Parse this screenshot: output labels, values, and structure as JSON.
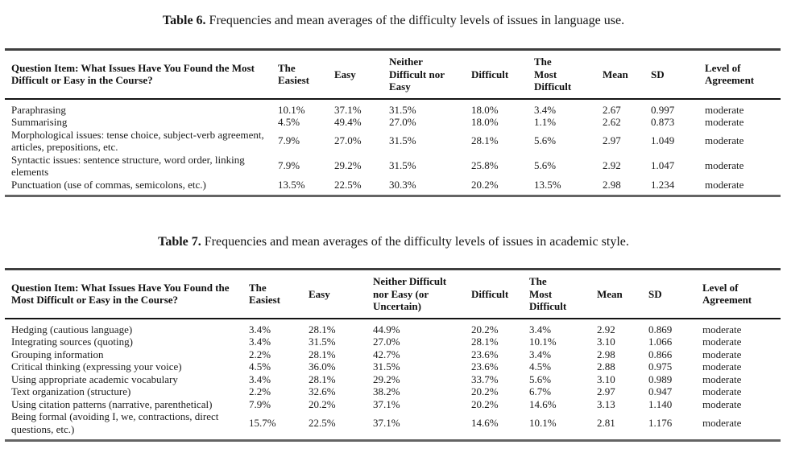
{
  "page": {
    "background": "#ffffff",
    "text_color": "#1b1b1b",
    "border_top_color": "#3f3f3f",
    "border_bottom_color": "#646464",
    "header_rule_color": "#141414"
  },
  "tables": [
    {
      "id": "table-6",
      "caption_label": "Table 6.",
      "caption_text": " Frequencies and mean averages of the difficulty levels of issues in language use.",
      "columns": [
        "Question Item: What Issues Have You Found the Most Difficult or Easy in the Course?",
        "The\nEasiest",
        "Easy",
        "Neither\nDifficult nor\nEasy",
        "Difficult",
        "The\nMost\nDifficult",
        "Mean",
        "SD",
        "Level of\nAgreement"
      ],
      "rows": [
        [
          "Paraphrasing",
          "10.1%",
          "37.1%",
          "31.5%",
          "18.0%",
          "3.4%",
          "2.67",
          "0.997",
          "moderate"
        ],
        [
          "Summarising",
          "4.5%",
          "49.4%",
          "27.0%",
          "18.0%",
          "1.1%",
          "2.62",
          "0.873",
          "moderate"
        ],
        [
          "Morphological issues: tense choice, subject-verb agreement, articles, prepositions, etc.",
          "7.9%",
          "27.0%",
          "31.5%",
          "28.1%",
          "5.6%",
          "2.97",
          "1.049",
          "moderate"
        ],
        [
          "Syntactic issues: sentence structure, word order, linking elements",
          "7.9%",
          "29.2%",
          "31.5%",
          "25.8%",
          "5.6%",
          "2.92",
          "1.047",
          "moderate"
        ],
        [
          "Punctuation (use of commas, semicolons, etc.)",
          "13.5%",
          "22.5%",
          "30.3%",
          "20.2%",
          "13.5%",
          "2.98",
          "1.234",
          "moderate"
        ]
      ]
    },
    {
      "id": "table-7",
      "caption_label": "Table 7.",
      "caption_text": " Frequencies and mean averages of the difficulty levels of issues in academic style.",
      "columns": [
        "Question Item: What Issues Have You Found the Most Difficult or Easy in the Course?",
        "The\nEasiest",
        "Easy",
        "Neither Difficult\nnor Easy (or\nUncertain)",
        "Difficult",
        "The\nMost\nDifficult",
        "Mean",
        "SD",
        "Level of\nAgreement"
      ],
      "rows": [
        [
          "Hedging (cautious language)",
          "3.4%",
          "28.1%",
          "44.9%",
          "20.2%",
          "3.4%",
          "2.92",
          "0.869",
          "moderate"
        ],
        [
          "Integrating sources (quoting)",
          "3.4%",
          "31.5%",
          "27.0%",
          "28.1%",
          "10.1%",
          "3.10",
          "1.066",
          "moderate"
        ],
        [
          "Grouping information",
          "2.2%",
          "28.1%",
          "42.7%",
          "23.6%",
          "3.4%",
          "2.98",
          "0.866",
          "moderate"
        ],
        [
          "Critical thinking (expressing your voice)",
          "4.5%",
          "36.0%",
          "31.5%",
          "23.6%",
          "4.5%",
          "2.88",
          "0.975",
          "moderate"
        ],
        [
          "Using appropriate academic vocabulary",
          "3.4%",
          "28.1%",
          "29.2%",
          "33.7%",
          "5.6%",
          "3.10",
          "0.989",
          "moderate"
        ],
        [
          "Text organization (structure)",
          "2.2%",
          "32.6%",
          "38.2%",
          "20.2%",
          "6.7%",
          "2.97",
          "0.947",
          "moderate"
        ],
        [
          "Using citation patterns (narrative, parenthetical)",
          "7.9%",
          "20.2%",
          "37.1%",
          "20.2%",
          "14.6%",
          "3.13",
          "1.140",
          "moderate"
        ],
        [
          "Being formal (avoiding I, we, contractions, direct questions, etc.)",
          "15.7%",
          "22.5%",
          "37.1%",
          "14.6%",
          "10.1%",
          "2.81",
          "1.176",
          "moderate"
        ]
      ]
    }
  ]
}
